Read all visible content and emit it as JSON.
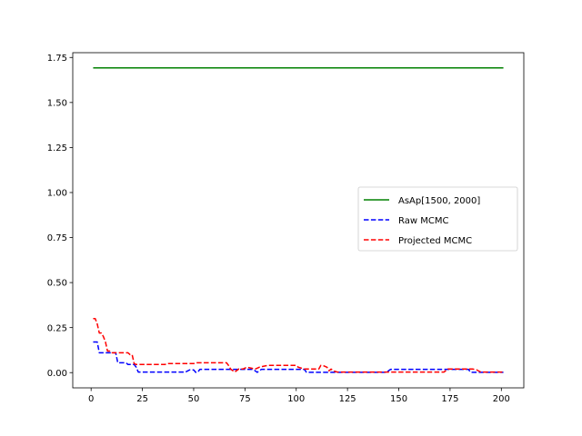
{
  "chart_data": {
    "type": "line",
    "title": "",
    "xlabel": "",
    "ylabel": "",
    "xlim": [
      -8.95,
      210.95
    ],
    "ylim": [
      -0.0846,
      1.7766
    ],
    "xticks": [
      0,
      25,
      50,
      75,
      100,
      125,
      150,
      175,
      200
    ],
    "yticks": [
      0.0,
      0.25,
      0.5,
      0.75,
      1.0,
      1.25,
      1.5,
      1.75
    ],
    "xtick_labels": [
      "0",
      "25",
      "50",
      "75",
      "100",
      "125",
      "150",
      "175",
      "200"
    ],
    "ytick_labels": [
      "0.00",
      "0.25",
      "0.50",
      "0.75",
      "1.00",
      "1.25",
      "1.50",
      "1.75"
    ],
    "grid": false,
    "legend_position": "center-right",
    "series": [
      {
        "name": "AsAp[1500, 2000]",
        "color": "#008000",
        "style": "solid",
        "x": [
          1,
          201
        ],
        "y": [
          1.692,
          1.692
        ]
      },
      {
        "name": "Raw MCMC",
        "color": "#0000ff",
        "style": "dashed",
        "x": [
          1,
          3,
          4,
          5,
          12,
          13,
          17,
          18,
          20,
          21,
          22,
          23,
          46,
          48,
          50,
          51,
          52,
          53,
          54,
          55,
          71,
          73,
          79,
          81,
          83,
          85,
          104,
          105,
          112,
          113,
          118,
          120,
          144,
          146,
          184,
          185,
          201
        ],
        "y": [
          0.17,
          0.17,
          0.11,
          0.11,
          0.11,
          0.055,
          0.055,
          0.045,
          0.045,
          0.045,
          0.03,
          0.003,
          0.003,
          0.015,
          0.015,
          0.002,
          0.002,
          0.018,
          0.018,
          0.018,
          0.018,
          0.018,
          0.018,
          0.002,
          0.018,
          0.018,
          0.018,
          0.002,
          0.002,
          0.002,
          0.002,
          0.002,
          0.002,
          0.018,
          0.018,
          0.002,
          0.002
        ]
      },
      {
        "name": "Projected MCMC",
        "color": "#ff0000",
        "style": "dashed",
        "x": [
          1,
          2,
          3,
          4,
          5,
          6,
          7,
          8,
          9,
          10,
          11,
          12,
          13,
          14,
          15,
          16,
          17,
          18,
          19,
          20,
          21,
          22,
          23,
          25,
          36,
          37,
          45,
          46,
          50,
          51,
          64,
          66,
          67,
          68,
          70,
          72,
          74,
          76,
          78,
          80,
          82,
          84,
          86,
          99,
          100,
          101,
          104,
          106,
          110,
          111,
          112,
          113,
          115,
          116,
          117,
          118,
          120,
          122,
          130,
          135,
          140,
          145,
          150,
          160,
          172,
          174,
          176,
          186,
          188,
          190,
          195,
          201
        ],
        "y": [
          0.3,
          0.3,
          0.27,
          0.22,
          0.22,
          0.2,
          0.17,
          0.12,
          0.12,
          0.11,
          0.11,
          0.11,
          0.11,
          0.11,
          0.11,
          0.11,
          0.11,
          0.11,
          0.1,
          0.1,
          0.05,
          0.045,
          0.045,
          0.045,
          0.045,
          0.05,
          0.05,
          0.05,
          0.05,
          0.055,
          0.055,
          0.055,
          0.04,
          0.02,
          0.003,
          0.02,
          0.02,
          0.03,
          0.025,
          0.02,
          0.03,
          0.035,
          0.04,
          0.04,
          0.04,
          0.03,
          0.02,
          0.02,
          0.02,
          0.02,
          0.04,
          0.04,
          0.03,
          0.01,
          0.02,
          0.01,
          0.003,
          0.003,
          0.003,
          0.003,
          0.003,
          0.003,
          0.003,
          0.003,
          0.003,
          0.02,
          0.02,
          0.02,
          0.015,
          0.003,
          0.003,
          0.003
        ]
      }
    ]
  }
}
